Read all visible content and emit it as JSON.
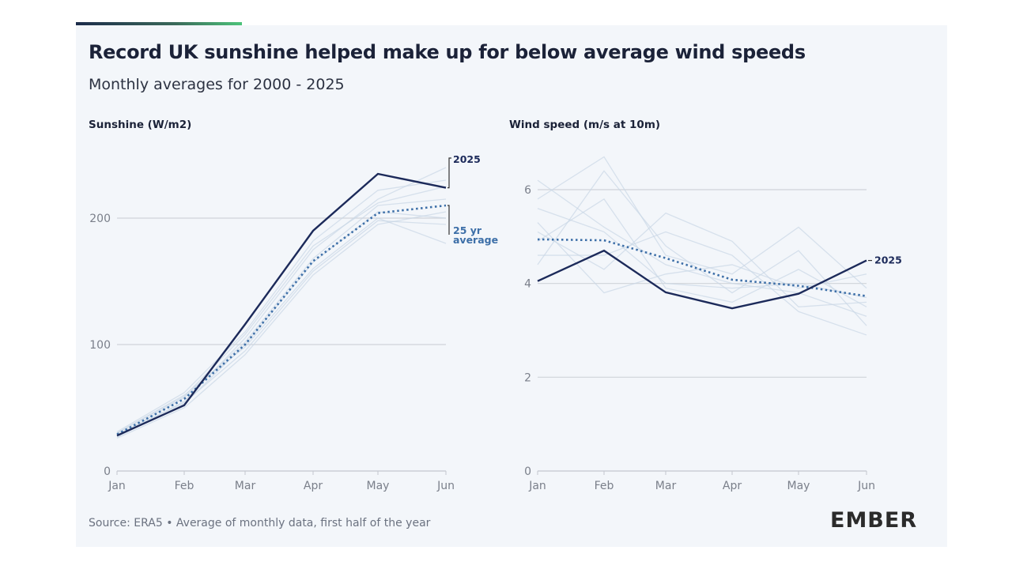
{
  "title": "Record UK sunshine helped make up for below average wind speeds",
  "subtitle": "Monthly averages for 2000 - 2025",
  "source": "Source: ERA5 • Average of monthly data, first half of the year",
  "logo": "EMBER",
  "colors": {
    "highlight": "#1c2a5a",
    "average": "#3d6fa8",
    "history": "#c9d7e6",
    "grid": "#d0d3d9",
    "brand_green": "#4cc37a"
  },
  "chart_data": [
    {
      "type": "line",
      "title": "Sunshine (W/m2)",
      "categories": [
        "Jan",
        "Feb",
        "Mar",
        "Apr",
        "May",
        "Jun"
      ],
      "ylim": [
        0,
        200
      ],
      "yticks": [
        0,
        100,
        200
      ],
      "grid": true,
      "series": [
        {
          "name": "2025",
          "style": "solid",
          "values": [
            28,
            52,
            116,
            190,
            235,
            224
          ]
        },
        {
          "name": "25 yr average",
          "style": "dotted",
          "values": [
            29,
            57,
            100,
            166,
            204,
            210
          ]
        }
      ],
      "history": [
        [
          27,
          55,
          105,
          175,
          215,
          240
        ],
        [
          30,
          60,
          98,
          160,
          200,
          180
        ],
        [
          26,
          50,
          92,
          155,
          195,
          205
        ],
        [
          31,
          62,
          110,
          182,
          222,
          230
        ],
        [
          28,
          58,
          102,
          168,
          210,
          215
        ],
        [
          29,
          54,
          95,
          158,
          198,
          195
        ],
        [
          30,
          59,
          108,
          178,
          212,
          225
        ],
        [
          27,
          53,
          100,
          165,
          205,
          200
        ]
      ]
    },
    {
      "type": "line",
      "title": "Wind speed (m/s at 10m)",
      "categories": [
        "Jan",
        "Feb",
        "Mar",
        "Apr",
        "May",
        "Jun"
      ],
      "ylim": [
        0,
        6
      ],
      "yticks": [
        0,
        2,
        4,
        6
      ],
      "grid": true,
      "series": [
        {
          "name": "2025",
          "style": "solid",
          "values": [
            4.05,
            4.7,
            3.81,
            3.47,
            3.78,
            4.49
          ]
        },
        {
          "name": "25 yr average",
          "style": "dotted",
          "values": [
            4.94,
            4.92,
            4.54,
            4.08,
            3.95,
            3.73
          ]
        }
      ],
      "history": [
        [
          6.2,
          5.2,
          4.4,
          4.0,
          3.8,
          3.3
        ],
        [
          5.8,
          6.7,
          4.6,
          4.2,
          5.2,
          3.9
        ],
        [
          5.1,
          4.3,
          5.5,
          4.9,
          3.5,
          3.6
        ],
        [
          4.4,
          6.4,
          4.8,
          3.8,
          4.7,
          3.1
        ],
        [
          5.3,
          3.8,
          4.2,
          4.4,
          3.9,
          4.2
        ],
        [
          4.9,
          5.8,
          3.9,
          3.6,
          4.3,
          3.5
        ],
        [
          4.6,
          4.6,
          5.1,
          4.6,
          3.4,
          2.9
        ],
        [
          5.6,
          5.1,
          4.0,
          3.9,
          4.0,
          3.7
        ]
      ]
    }
  ]
}
